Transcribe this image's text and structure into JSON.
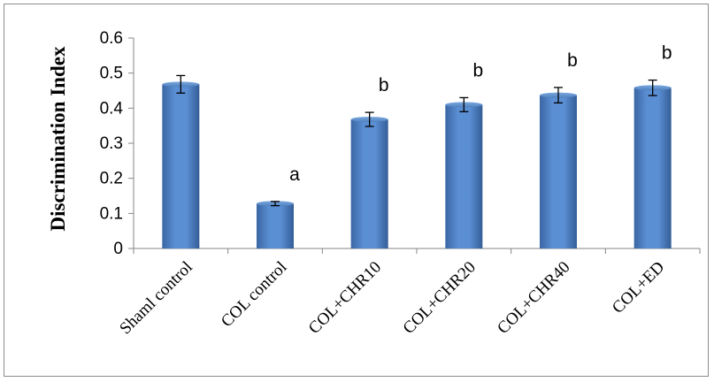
{
  "chart_data": {
    "type": "bar",
    "title": "",
    "xlabel": "",
    "ylabel": "Discrimination Index",
    "ylim": [
      0,
      0.6
    ],
    "yticks": [
      "0",
      "0.1",
      "0.2",
      "0.3",
      "0.4",
      "0.5",
      "0.6"
    ],
    "grid": false,
    "legend": "none",
    "bar_color": "#4f81bd",
    "categories": [
      "Shaml control",
      "COL control",
      "COL+CHR10",
      "COL+CHR20",
      "COL+CHR40",
      "COL+ED"
    ],
    "values": [
      0.468,
      0.128,
      0.368,
      0.41,
      0.437,
      0.458
    ],
    "errors": [
      0.025,
      0.006,
      0.02,
      0.02,
      0.022,
      0.022
    ],
    "annotations": [
      "",
      "a",
      "b",
      "b",
      "b",
      "b"
    ]
  }
}
